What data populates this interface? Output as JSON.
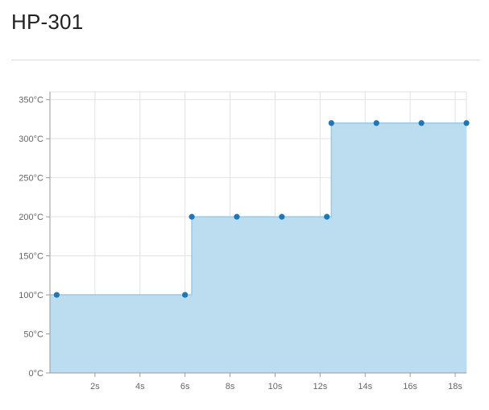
{
  "title": "HP-301",
  "chart_data": {
    "type": "area",
    "step": true,
    "x": [
      0.3,
      6.0,
      6.3,
      8.3,
      10.3,
      12.3,
      12.5,
      14.5,
      16.5,
      18.5
    ],
    "values": [
      100,
      100,
      200,
      200,
      200,
      200,
      320,
      320,
      320,
      320
    ],
    "xlim": [
      0,
      18.5
    ],
    "ylim": [
      0,
      360
    ],
    "x_ticks": [
      2,
      4,
      6,
      8,
      10,
      12,
      14,
      16,
      18
    ],
    "x_tick_labels": [
      "2s",
      "4s",
      "6s",
      "8s",
      "10s",
      "12s",
      "14s",
      "16s",
      "18s"
    ],
    "y_ticks": [
      0,
      50,
      100,
      150,
      200,
      250,
      300,
      350
    ],
    "y_tick_labels": [
      "0°C",
      "50°C",
      "100°C",
      "150°C",
      "200°C",
      "250°C",
      "300°C",
      "350°C"
    ],
    "grid": true,
    "colors": {
      "fill": "#bcdcf0",
      "line": "#9cc9e6",
      "point": "#1f77b4",
      "grid": "#e2e2e2",
      "axis": "#9a9a9a",
      "tick_label": "#666666"
    }
  }
}
